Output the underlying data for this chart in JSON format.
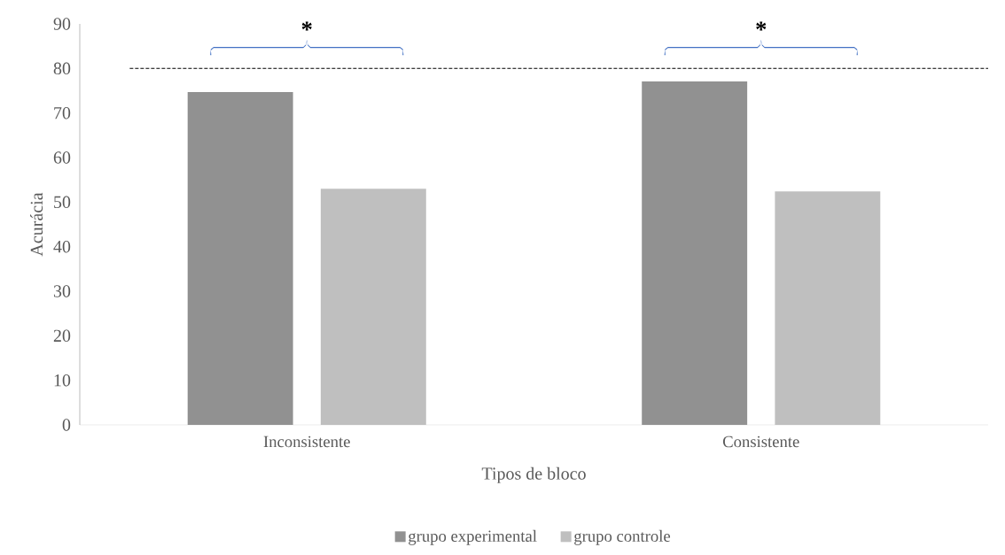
{
  "chart_data": {
    "type": "bar",
    "xlabel": "Tipos de bloco",
    "ylabel": "Acurácia",
    "categories": [
      "Inconsistente",
      "Consistente"
    ],
    "series": [
      {
        "name": "grupo experimental",
        "color": "#919191",
        "values": [
          74.7,
          77.1
        ]
      },
      {
        "name": "grupo controle",
        "color": "#bfbfbf",
        "values": [
          53.0,
          52.4
        ]
      }
    ],
    "ylim": [
      0,
      90
    ],
    "yticks": [
      0,
      10,
      20,
      30,
      40,
      50,
      60,
      70,
      80,
      90
    ],
    "ref_lines": [
      {
        "axis": "y",
        "value": 80,
        "color": "#000000",
        "line_style": "dashed"
      }
    ],
    "annotations": [
      "*",
      "*"
    ],
    "legend": "bottom",
    "grid": false
  }
}
